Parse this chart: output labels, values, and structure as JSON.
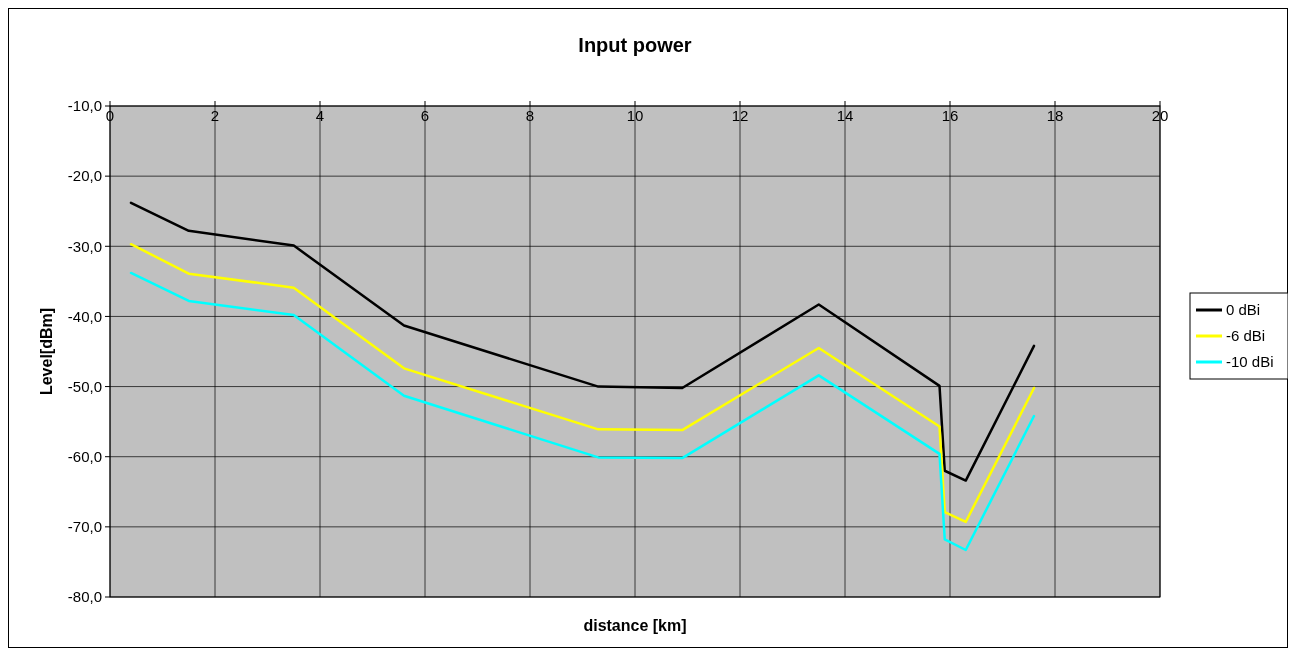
{
  "chart_data": {
    "type": "line",
    "title": "Input power",
    "xlabel": "distance [km]",
    "ylabel": "Level[dBm]",
    "x": [
      0.4,
      1.5,
      3.5,
      5.6,
      9.3,
      10.9,
      13.5,
      15.8,
      15.9,
      16.3,
      17.6
    ],
    "series": [
      {
        "name": "0 dBi",
        "color": "#000000",
        "values": [
          -23.8,
          -27.8,
          -29.9,
          -41.3,
          -50.0,
          -50.2,
          -38.3,
          -49.9,
          -62.0,
          -63.4,
          -44.2
        ]
      },
      {
        "name": "-6 dBi",
        "color": "#ffff00",
        "values": [
          -29.7,
          -33.9,
          -35.9,
          -47.4,
          -56.1,
          -56.2,
          -44.5,
          -55.7,
          -67.9,
          -69.3,
          -50.2
        ]
      },
      {
        "name": "-10 dBi",
        "color": "#00ffff",
        "values": [
          -33.8,
          -37.8,
          -39.8,
          -51.3,
          -60.1,
          -60.2,
          -48.4,
          -59.6,
          -71.8,
          -73.3,
          -54.2
        ]
      }
    ],
    "xlim": [
      0,
      20
    ],
    "xticks": [
      0,
      2,
      4,
      6,
      8,
      10,
      12,
      14,
      16,
      18,
      20
    ],
    "ylim": [
      -80,
      -10
    ],
    "yticks": [
      {
        "value": -80,
        "label": "-80,0"
      },
      {
        "value": -70,
        "label": "-70,0"
      },
      {
        "value": -60,
        "label": "-60,0"
      },
      {
        "value": -50,
        "label": "-50,0"
      },
      {
        "value": -40,
        "label": "-40,0"
      },
      {
        "value": -30,
        "label": "-30,0"
      },
      {
        "value": -20,
        "label": "-20,0"
      },
      {
        "value": -10,
        "label": "-10,0"
      }
    ],
    "grid": true,
    "legend": "right",
    "marker": "none",
    "line_style": "solid"
  }
}
